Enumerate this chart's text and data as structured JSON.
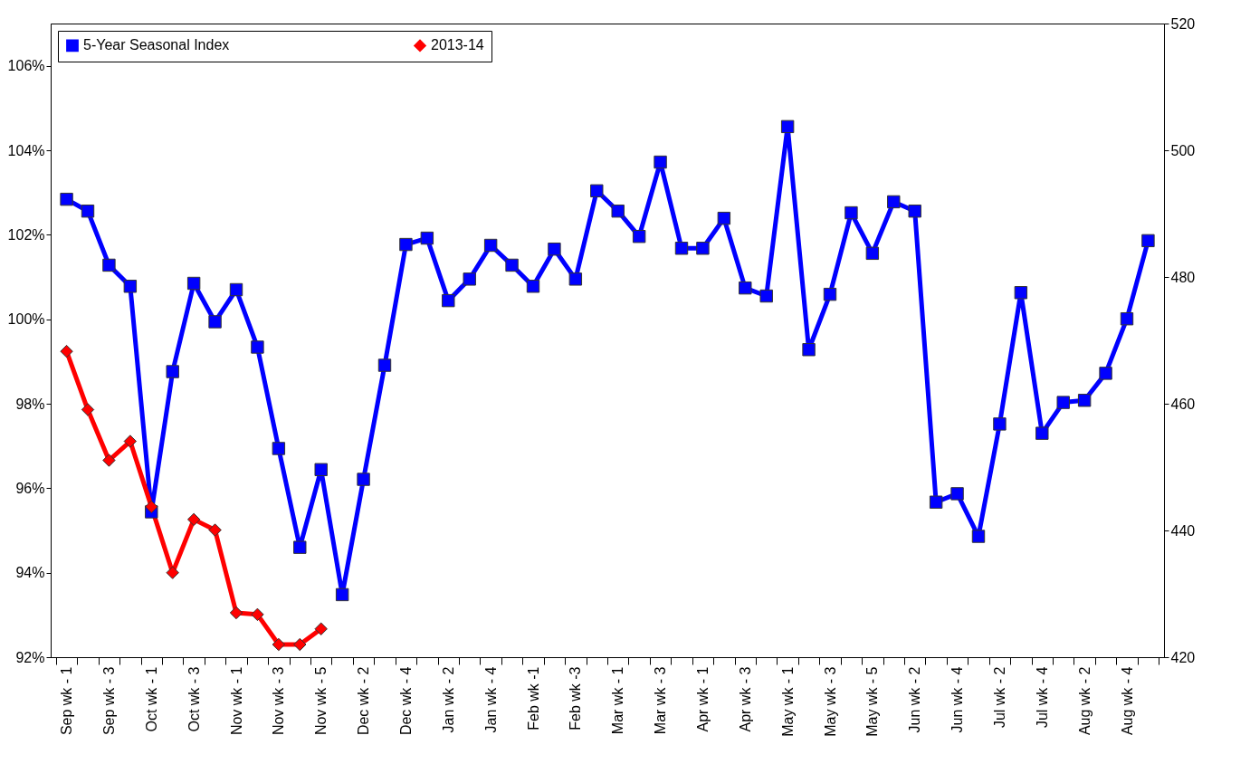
{
  "chart_data": {
    "type": "line",
    "categories": [
      "Sep wk - 1",
      null,
      "Sep wk - 3",
      null,
      "Oct wk - 1",
      null,
      "Oct wk - 3",
      null,
      "Nov wk - 1",
      null,
      "Nov wk - 3",
      null,
      "Nov wk - 5",
      null,
      "Dec wk - 2",
      null,
      "Dec wk - 4",
      null,
      "Jan wk - 2",
      null,
      "Jan wk - 4",
      null,
      "Feb wk -1",
      null,
      "Feb wk -3",
      null,
      "Mar wk - 1",
      null,
      "Mar wk - 3",
      null,
      "Apr wk - 1",
      null,
      "Apr wk - 3",
      null,
      "May wk - 1",
      null,
      "May wk - 3",
      null,
      "May wk - 5",
      null,
      "Jun wk - 2",
      null,
      "Jun wk - 4",
      null,
      "Jul wk - 2",
      null,
      "Jul wk - 4",
      null,
      "Aug wk - 2",
      null,
      "Aug wk - 4",
      null
    ],
    "series": [
      {
        "name": "5-Year Seasonal Index",
        "color": "#0000ff",
        "marker": "square",
        "values": [
          102.84,
          102.56,
          101.28,
          100.78,
          95.44,
          98.76,
          100.85,
          99.94,
          100.7,
          99.34,
          96.94,
          94.6,
          96.44,
          93.48,
          96.21,
          98.91,
          101.77,
          101.92,
          100.44,
          100.95,
          101.75,
          101.28,
          100.78,
          101.66,
          100.95,
          103.04,
          102.56,
          101.96,
          103.72,
          101.68,
          101.68,
          102.39,
          100.74,
          100.55,
          104.56,
          99.28,
          100.59,
          102.52,
          101.56,
          102.78,
          102.56,
          95.67,
          95.87,
          94.86,
          97.52,
          100.63,
          97.3,
          98.03,
          98.08,
          98.72,
          100.01,
          101.86
        ]
      },
      {
        "name": "2013-14",
        "color": "#ff0000",
        "marker": "diamond",
        "values": [
          99.24,
          97.86,
          96.66,
          97.11,
          95.56,
          94.0,
          95.26,
          95.01,
          93.05,
          93.01,
          92.3,
          92.3,
          92.67,
          null,
          null,
          null,
          null,
          null,
          null,
          null,
          null,
          null,
          null,
          null,
          null,
          null,
          null,
          null,
          null,
          null,
          null,
          null,
          null,
          null,
          null,
          null,
          null,
          null,
          null,
          null,
          null,
          null,
          null,
          null,
          null,
          null,
          null,
          null,
          null,
          null,
          null,
          null
        ]
      }
    ],
    "ylim": [
      92,
      107
    ],
    "yticks": [
      {
        "value": 92,
        "label": "92%"
      },
      {
        "value": 94,
        "label": "94%"
      },
      {
        "value": 96,
        "label": "96%"
      },
      {
        "value": 98,
        "label": "98%"
      },
      {
        "value": 100,
        "label": "100%"
      },
      {
        "value": 102,
        "label": "102%"
      },
      {
        "value": 104,
        "label": "104%"
      },
      {
        "value": 106,
        "label": "106%"
      }
    ],
    "y2lim": [
      420,
      520
    ],
    "y2ticks": [
      420,
      440,
      460,
      480,
      500,
      520
    ],
    "legend": "top",
    "grid": false,
    "line_style": "solid"
  }
}
